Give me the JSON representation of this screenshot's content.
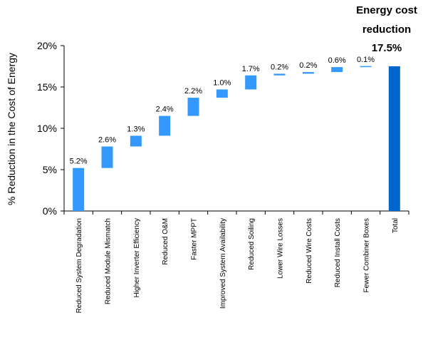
{
  "chart_data": {
    "type": "bar",
    "subtype": "waterfall",
    "ylabel": "% Reduction in the Cost of Energy",
    "xlabel": "",
    "ylim": [
      0,
      20
    ],
    "y_ticks": [
      "0%",
      "5%",
      "10%",
      "15%",
      "20%"
    ],
    "y_tick_values": [
      0,
      5,
      10,
      15,
      20
    ],
    "grid": false,
    "categories": [
      "Reduced System Degradation",
      "Reduced Module Mismatch",
      "Higher Inverter Efficiency",
      "Reduced O&M",
      "Faster MPPT",
      "Improved System Availability",
      "Reduced Soiling",
      "Lower Wire Losses",
      "Reduced Wire Costs",
      "Reduced Install Costs",
      "Fewer Combiner Boxes",
      "Total"
    ],
    "values": [
      5.2,
      2.6,
      1.3,
      2.4,
      2.2,
      1.0,
      1.7,
      0.2,
      0.2,
      0.6,
      0.1,
      17.5
    ],
    "data_labels": [
      "5.2%",
      "2.6%",
      "1.3%",
      "2.4%",
      "2.2%",
      "1.0%",
      "1.7%",
      "0.2%",
      "0.2%",
      "0.6%",
      "0.1%",
      ""
    ],
    "total_index": 11,
    "callout": {
      "line1": "Energy cost",
      "line2": "reduction",
      "line3": "17.5%"
    },
    "colors": {
      "step": "#3399ff",
      "total": "#0066cc"
    }
  }
}
